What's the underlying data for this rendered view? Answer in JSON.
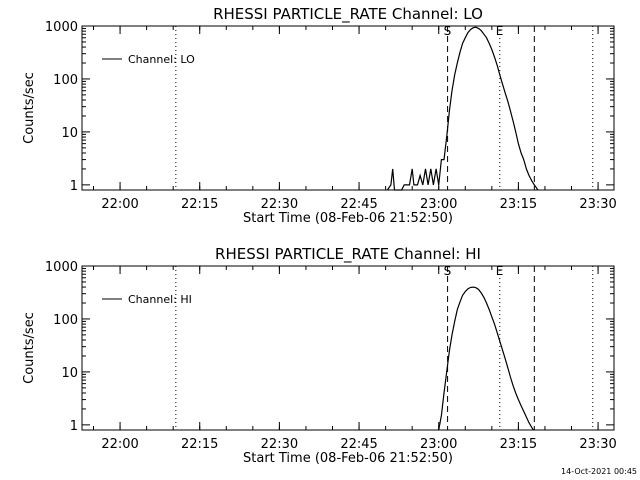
{
  "footer": {
    "timestamp": "14-Oct-2021 00:45"
  },
  "chart_data": [
    {
      "type": "line",
      "title": "RHESSI PARTICLE_RATE Channel: LO",
      "xlabel": "Start Time (08-Feb-06 21:52:50)",
      "ylabel": "Counts/sec",
      "scale_y": "log",
      "xlim": [
        "21:52:50",
        "23:33:00"
      ],
      "ylim": [
        0.8,
        1000
      ],
      "x_ticks": [
        "22:00",
        "22:15",
        "22:30",
        "22:45",
        "23:00",
        "23:15",
        "23:30"
      ],
      "y_ticks": [
        "1",
        "10",
        "100",
        "1000"
      ],
      "legend": {
        "position": "top-left",
        "entries": [
          "Channel: LO"
        ]
      },
      "markers": [
        {
          "label": "S",
          "time": "23:01:40",
          "style": "dashed"
        },
        {
          "label": "E",
          "time": "23:11:30",
          "style": "dotted"
        }
      ],
      "extra_lines": [
        {
          "time": "22:10:30",
          "style": "dotted"
        },
        {
          "time": "23:18:00",
          "style": "dashed"
        },
        {
          "time": "23:29:00",
          "style": "dotted"
        }
      ],
      "series": [
        {
          "name": "Channel: LO",
          "x": [
            "22:50:20",
            "22:51:00",
            "22:51:20",
            "22:51:40",
            "22:53:00",
            "22:53:30",
            "22:54:30",
            "22:55:00",
            "22:55:20",
            "22:56:00",
            "22:56:30",
            "22:57:00",
            "22:57:30",
            "22:58:00",
            "22:58:30",
            "22:59:00",
            "22:59:30",
            "23:00:00",
            "23:00:30",
            "23:01:00",
            "23:01:30",
            "23:02:00",
            "23:02:30",
            "23:03:00",
            "23:03:30",
            "23:04:00",
            "23:04:30",
            "23:05:00",
            "23:05:30",
            "23:06:00",
            "23:06:30",
            "23:07:00",
            "23:07:30",
            "23:08:00",
            "23:08:30",
            "23:09:00",
            "23:09:30",
            "23:10:00",
            "23:10:30",
            "23:11:00",
            "23:11:30",
            "23:12:00",
            "23:12:30",
            "23:13:00",
            "23:13:30",
            "23:14:00",
            "23:14:30",
            "23:15:00",
            "23:15:30",
            "23:16:00",
            "23:16:30",
            "23:17:00",
            "23:17:30",
            "23:18:00",
            "23:18:20",
            "23:18:40"
          ],
          "values": [
            0.8,
            1,
            2,
            0.8,
            0.8,
            1,
            1,
            2,
            1,
            1,
            1.5,
            1,
            2,
            1,
            2,
            1,
            2,
            1,
            3,
            3,
            8,
            25,
            60,
            120,
            200,
            320,
            470,
            600,
            750,
            860,
            930,
            950,
            900,
            820,
            700,
            600,
            470,
            360,
            260,
            180,
            120,
            80,
            55,
            38,
            25,
            16,
            10,
            6,
            4,
            3,
            2,
            1.5,
            1.2,
            1,
            0.9,
            0.8
          ]
        }
      ]
    },
    {
      "type": "line",
      "title": "RHESSI PARTICLE_RATE Channel: HI",
      "xlabel": "Start Time (08-Feb-06 21:52:50)",
      "ylabel": "Counts/sec",
      "scale_y": "log",
      "xlim": [
        "21:52:50",
        "23:33:00"
      ],
      "ylim": [
        0.8,
        1000
      ],
      "x_ticks": [
        "22:00",
        "22:15",
        "22:30",
        "22:45",
        "23:00",
        "23:15",
        "23:30"
      ],
      "y_ticks": [
        "1",
        "10",
        "100",
        "1000"
      ],
      "legend": {
        "position": "top-left",
        "entries": [
          "Channel: HI"
        ]
      },
      "markers": [
        {
          "label": "S",
          "time": "23:01:40",
          "style": "dashed"
        },
        {
          "label": "E",
          "time": "23:11:30",
          "style": "dotted"
        }
      ],
      "extra_lines": [
        {
          "time": "22:10:30",
          "style": "dotted"
        },
        {
          "time": "23:18:00",
          "style": "dashed"
        },
        {
          "time": "23:29:00",
          "style": "dotted"
        }
      ],
      "series": [
        {
          "name": "Channel: HI",
          "x": [
            "23:00:00",
            "23:00:30",
            "23:01:00",
            "23:01:30",
            "23:02:00",
            "23:02:30",
            "23:03:00",
            "23:03:30",
            "23:04:00",
            "23:04:30",
            "23:05:00",
            "23:05:30",
            "23:06:00",
            "23:06:30",
            "23:07:00",
            "23:07:30",
            "23:08:00",
            "23:08:30",
            "23:09:00",
            "23:09:30",
            "23:10:00",
            "23:10:30",
            "23:11:00",
            "23:11:30",
            "23:12:00",
            "23:12:30",
            "23:13:00",
            "23:13:30",
            "23:14:00",
            "23:14:30",
            "23:15:00",
            "23:15:30",
            "23:16:00",
            "23:16:30",
            "23:17:00",
            "23:17:30",
            "23:17:50"
          ],
          "values": [
            0.8,
            1.5,
            4,
            10,
            25,
            50,
            90,
            150,
            210,
            280,
            330,
            370,
            395,
            400,
            390,
            360,
            310,
            255,
            200,
            150,
            110,
            80,
            55,
            38,
            26,
            18,
            12,
            8,
            5.5,
            4,
            3,
            2.3,
            1.8,
            1.4,
            1.1,
            0.9,
            0.8
          ]
        }
      ]
    }
  ]
}
